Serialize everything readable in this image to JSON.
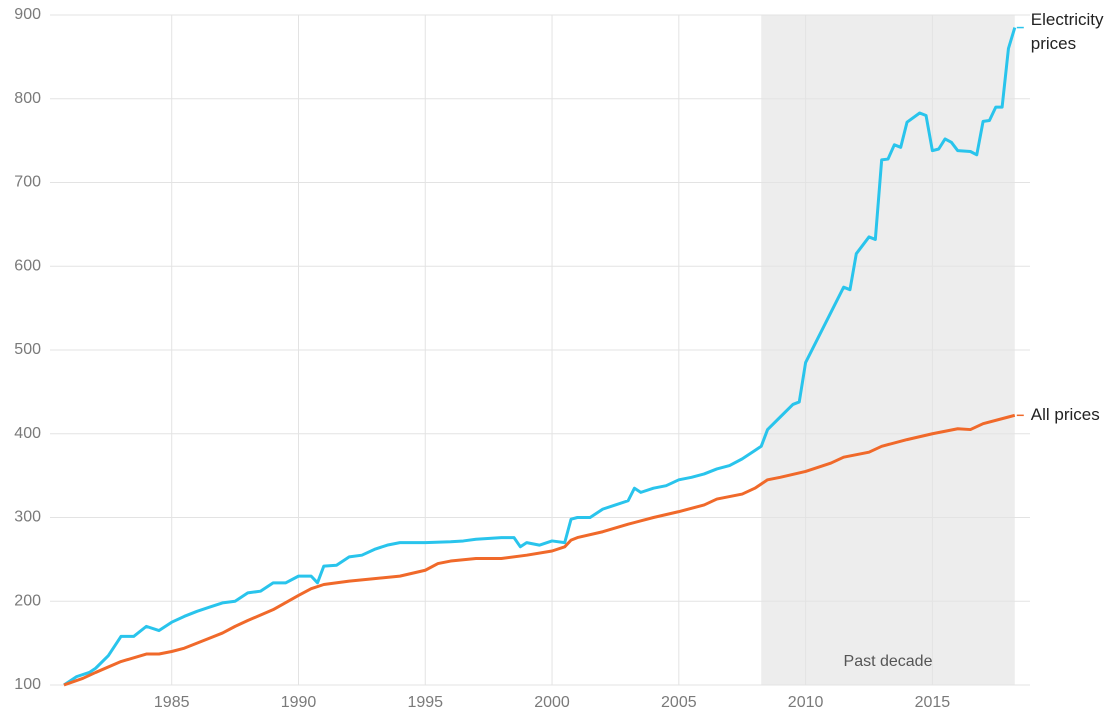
{
  "chart_data": {
    "type": "line",
    "xlim": [
      1980.2,
      2018.85
    ],
    "ylim": [
      100,
      900
    ],
    "xticks": [
      1985,
      1990,
      1995,
      2000,
      2005,
      2010,
      2015
    ],
    "yticks": [
      100,
      200,
      300,
      400,
      500,
      600,
      700,
      800,
      900
    ],
    "grid": true,
    "shaded_region": {
      "label": "Past decade",
      "x": [
        2008.25,
        2018.25
      ],
      "color": "#ededed"
    },
    "series": [
      {
        "name": "Electricity prices",
        "color": "#29c4ec",
        "x": [
          1980.75,
          1981.25,
          1981.75,
          1982,
          1982.5,
          1983,
          1983.5,
          1984,
          1984.5,
          1985,
          1985.5,
          1986,
          1986.5,
          1987,
          1987.5,
          1988,
          1988.5,
          1989,
          1989.5,
          1990,
          1990.5,
          1990.75,
          1991,
          1991.5,
          1992,
          1992.5,
          1993,
          1993.5,
          1994,
          1995,
          1996,
          1996.5,
          1997,
          1998,
          1998.5,
          1998.75,
          1999,
          1999.5,
          2000,
          2000.5,
          2000.75,
          2001,
          2001.5,
          2002,
          2002.5,
          2003,
          2003.25,
          2003.5,
          2004,
          2004.5,
          2005,
          2005.5,
          2006,
          2006.5,
          2007,
          2007.5,
          2008,
          2008.25,
          2008.5,
          2009,
          2009.5,
          2009.75,
          2010,
          2010.5,
          2011,
          2011.5,
          2011.75,
          2012,
          2012.5,
          2012.75,
          2013,
          2013.25,
          2013.5,
          2013.75,
          2014,
          2014.5,
          2014.75,
          2015,
          2015.25,
          2015.5,
          2015.75,
          2016,
          2016.5,
          2016.75,
          2017,
          2017.25,
          2017.5,
          2017.75,
          2018,
          2018.25
        ],
        "values": [
          100,
          110,
          115,
          120,
          135,
          158,
          158,
          170,
          165,
          175,
          182,
          188,
          193,
          198,
          200,
          210,
          212,
          222,
          222,
          230,
          230,
          222,
          242,
          243,
          253,
          255,
          262,
          267,
          270,
          270,
          271,
          272,
          274,
          276,
          276,
          265,
          270,
          267,
          272,
          270,
          298,
          300,
          300,
          310,
          315,
          320,
          335,
          330,
          335,
          338,
          345,
          348,
          352,
          358,
          362,
          370,
          380,
          385,
          405,
          420,
          435,
          438,
          485,
          515,
          545,
          575,
          572,
          615,
          635,
          632,
          727,
          728,
          745,
          742,
          772,
          783,
          780,
          738,
          740,
          752,
          748,
          738,
          737,
          733,
          773,
          774,
          790,
          790,
          860,
          885
        ]
      },
      {
        "name": "All prices",
        "color": "#f0692a",
        "x": [
          1980.75,
          1981.5,
          1982,
          1983,
          1984,
          1984.5,
          1985,
          1985.5,
          1986,
          1987,
          1987.5,
          1988,
          1989,
          1990,
          1990.5,
          1991,
          1992,
          1993,
          1994,
          1995,
          1995.5,
          1996,
          1997,
          1998,
          1999,
          2000,
          2000.5,
          2000.75,
          2001,
          2002,
          2003,
          2004,
          2005,
          2006,
          2006.5,
          2007,
          2007.5,
          2008,
          2008.5,
          2009,
          2010,
          2011,
          2011.5,
          2012,
          2012.5,
          2013,
          2014,
          2015,
          2016,
          2016.5,
          2017,
          2018,
          2018.25
        ],
        "values": [
          100,
          108,
          115,
          128,
          137,
          137,
          140,
          144,
          150,
          162,
          170,
          177,
          190,
          207,
          215,
          220,
          224,
          227,
          230,
          237,
          245,
          248,
          251,
          251,
          255,
          260,
          265,
          273,
          276,
          283,
          292,
          300,
          307,
          315,
          322,
          325,
          328,
          335,
          345,
          348,
          355,
          365,
          372,
          375,
          378,
          385,
          393,
          400,
          406,
          405,
          412,
          420,
          422
        ]
      }
    ]
  }
}
